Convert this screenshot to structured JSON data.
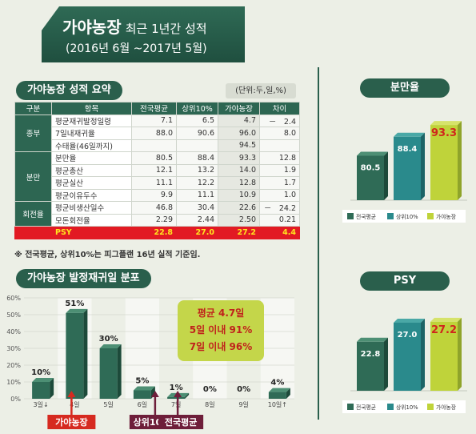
{
  "header": {
    "title_bold": "가야농장",
    "title_rest": "최근 1년간 성적",
    "period": "(2016년 6월 ~2017년 5월)"
  },
  "summary": {
    "heading": "가야농장 성적 요약",
    "unit": "(단위:두,일,%)",
    "columns": [
      "구분",
      "항목",
      "전국평균",
      "상위10%",
      "가야농장",
      "차이"
    ],
    "groups": [
      {
        "category": "종부",
        "rows": [
          {
            "item": "평균재귀발정일령",
            "nat": "7.1",
            "top": "6.5",
            "gaya": "4.7",
            "diff": "－　2.4"
          },
          {
            "item": "7일내재귀율",
            "nat": "88.0",
            "top": "90.6",
            "gaya": "96.0",
            "diff": "8.0"
          },
          {
            "item": "수태율(46일까지)",
            "nat": "",
            "top": "",
            "gaya": "94.5",
            "diff": ""
          }
        ]
      },
      {
        "category": "분만",
        "rows": [
          {
            "item": "분만율",
            "nat": "80.5",
            "top": "88.4",
            "gaya": "93.3",
            "diff": "12.8"
          },
          {
            "item": "평균총산",
            "nat": "12.1",
            "top": "13.2",
            "gaya": "14.0",
            "diff": "1.9"
          },
          {
            "item": "평균실산",
            "nat": "11.1",
            "top": "12.2",
            "gaya": "12.8",
            "diff": "1.7"
          },
          {
            "item": "평균이유두수",
            "nat": "9.9",
            "top": "11.1",
            "gaya": "10.9",
            "diff": "1.0"
          }
        ]
      },
      {
        "category": "회전율",
        "rows": [
          {
            "item": "평균비생산일수",
            "nat": "46.8",
            "top": "30.4",
            "gaya": "22.6",
            "diff": "－　24.2"
          },
          {
            "item": "모돈회전율",
            "nat": "2.29",
            "top": "2.44",
            "gaya": "2.50",
            "diff": "0.21"
          }
        ]
      }
    ],
    "psy_row": {
      "item": "PSY",
      "nat": "22.8",
      "top": "27.0",
      "gaya": "27.2",
      "diff": "4.4"
    },
    "note": "※ 전국평균, 상위10%는 피그플랜 16년 실적 기준임."
  },
  "colors": {
    "dark_green": "#2a5f4c",
    "bar_national": "#2f6b56",
    "bar_top10": "#2a8a8c",
    "bar_gaya": "#bfd33a",
    "gaya_value": "#d0261c",
    "psy_row": "#e21a23",
    "psy_text": "#ffe61e",
    "callout_bg": "#c4d64a",
    "callout_text": "#c0221c"
  },
  "chart_data": [
    {
      "type": "bar",
      "title": "가야농장 발정재귀일 분포",
      "categories": [
        "3일↓",
        "4일",
        "5일",
        "6일",
        "7일",
        "8일",
        "9일",
        "10일↑"
      ],
      "values": [
        10,
        51,
        30,
        5,
        1,
        0,
        0,
        4
      ],
      "value_labels": [
        "10%",
        "51%",
        "30%",
        "5%",
        "1%",
        "0%",
        "0%",
        "4%"
      ],
      "yticks": [
        "0%",
        "10%",
        "20%",
        "30%",
        "40%",
        "50%",
        "60%"
      ],
      "ylim": [
        0,
        60
      ],
      "callout": [
        "평균 4.7일",
        "5일 이내 91%",
        "7일 이내 96%"
      ],
      "markers": [
        {
          "label": "가야농장",
          "category": "4일"
        },
        {
          "label": "상위10%",
          "category": "6일"
        },
        {
          "label": "전국평균",
          "category": "7일"
        }
      ]
    },
    {
      "type": "bar",
      "title": "분만율",
      "categories": [
        "전국평균",
        "상위10%",
        "가야농장"
      ],
      "values": [
        80.5,
        88.4,
        93.3
      ],
      "value_labels": [
        "80.5",
        "88.4",
        "93.3"
      ],
      "legend": [
        "전국평균",
        "상위10%",
        "가야농장"
      ]
    },
    {
      "type": "bar",
      "title": "PSY",
      "categories": [
        "전국평균",
        "상위10%",
        "가야농장"
      ],
      "values": [
        22.8,
        27.0,
        27.2
      ],
      "value_labels": [
        "22.8",
        "27.0",
        "27.2"
      ],
      "legend": [
        "전국평균",
        "상위10%",
        "가야농장"
      ]
    }
  ]
}
